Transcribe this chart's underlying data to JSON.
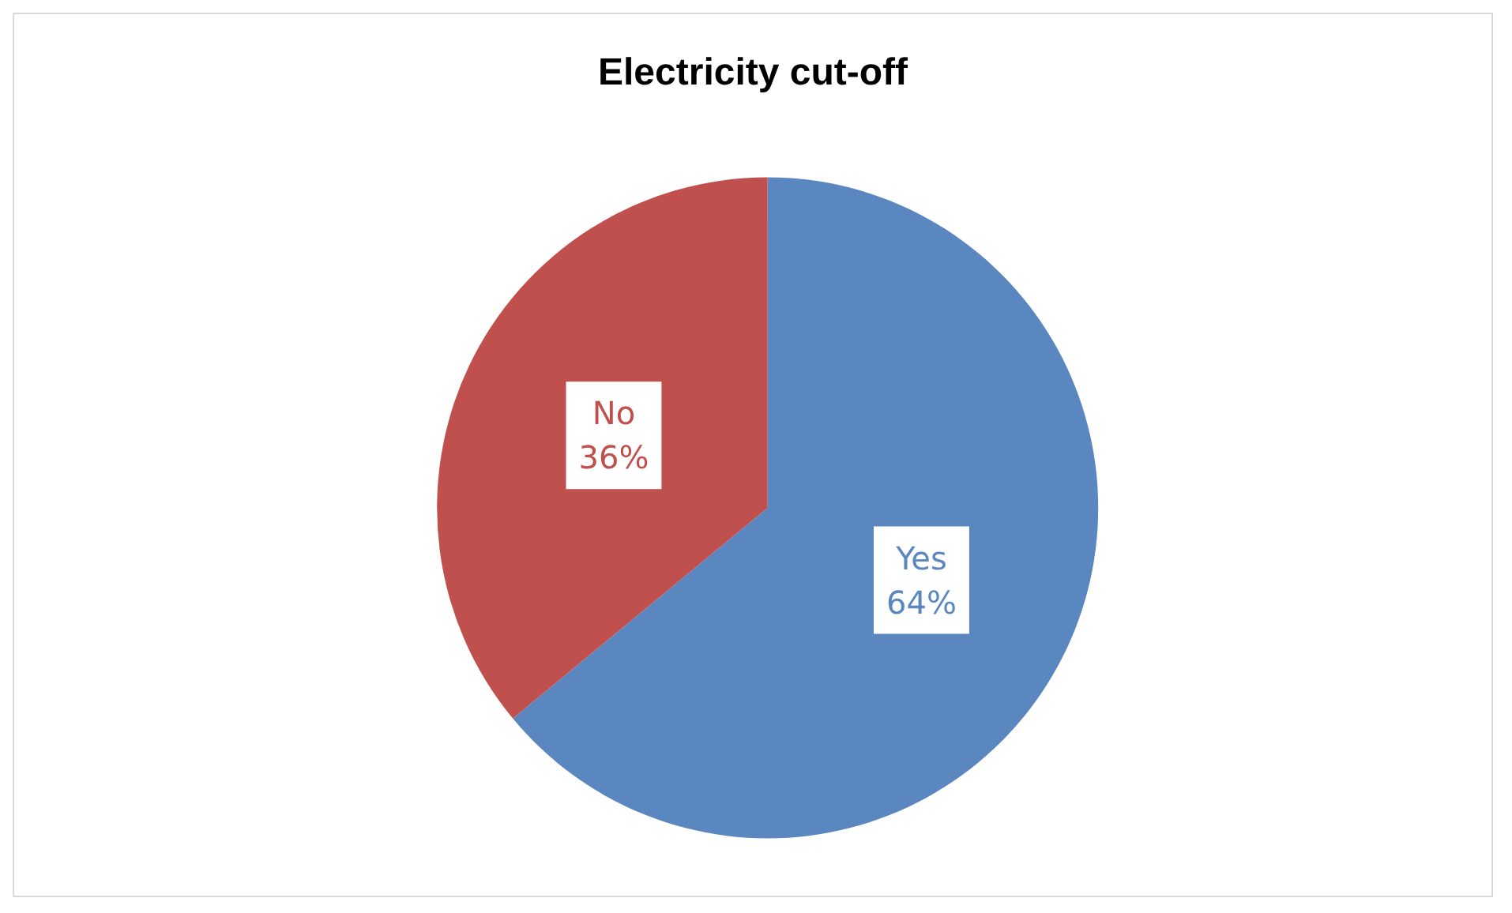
{
  "chart_data": {
    "type": "pie",
    "title": "Electricity cut-off",
    "categories": [
      "Yes",
      "No"
    ],
    "values": [
      64,
      36
    ],
    "colors": [
      "#5b87c0",
      "#c0504d"
    ],
    "value_labels": [
      "64%",
      "36%"
    ],
    "legend": false
  }
}
